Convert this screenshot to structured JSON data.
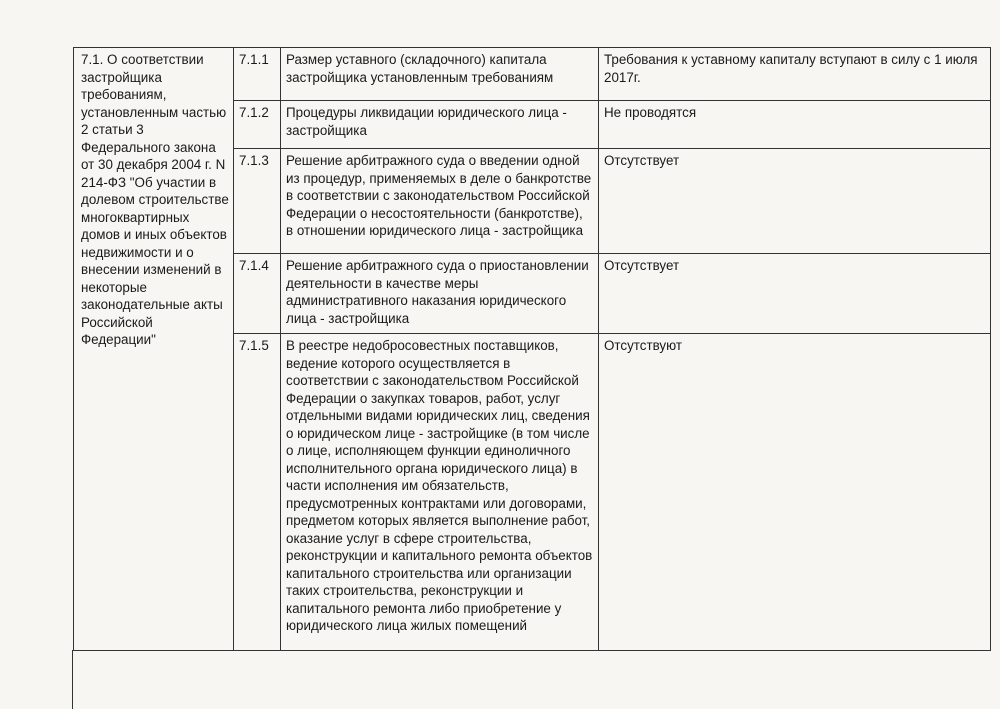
{
  "table": {
    "section": "7.1. О соответствии застройщика требованиям, установленным частью 2 статьи 3 Федерального закона от 30 декабря 2004 г. N 214-ФЗ \"Об участии в долевом строительстве многоквартирных домов и иных объектов недвижимости и о внесении изменений в некоторые законодательные акты Российской Федерации\"",
    "rows": [
      [
        "7.1.1",
        "Размер уставного (складочного) капитала застройщика установленным требованиям",
        "Требования к уставному капиталу вступают в силу с 1 июля 2017г."
      ],
      [
        "7.1.2",
        "Процедуры ликвидации юридического лица - застройщика",
        "Не проводятся"
      ],
      [
        "7.1.3",
        "Решение арбитражного суда о введении одной из процедур, применяемых в деле о банкротстве в соответствии с законодательством Российской Федерации о несостоятельности (банкротстве), в отношении юридического лица - застройщика",
        "Отсутствует"
      ],
      [
        "7.1.4",
        "Решение арбитражного суда о приостановлении деятельности в качестве меры административного наказания юридического лица - застройщика",
        "Отсутствует"
      ],
      [
        "7.1.5",
        "В реестре недобросовестных поставщиков, ведение которого осуществляется в соответствии с законодательством Российской Федерации о закупках товаров, работ, услуг отдельными видами юридических лиц, сведения о юридическом лице - застройщике (в том числе о лице, исполняющем функции единоличного исполнительного органа юридического лица) в части исполнения им обязательств, предусмотренных контрактами или договорами, предметом которых является выполнение работ, оказание услуг в сфере строительства, реконструкции и капитального ремонта объектов капитального строительства или организации таких строительства, реконструкции и капитального ремонта либо приобретение у юридического лица жилых помещений",
        "Отсутствуют"
      ]
    ]
  }
}
